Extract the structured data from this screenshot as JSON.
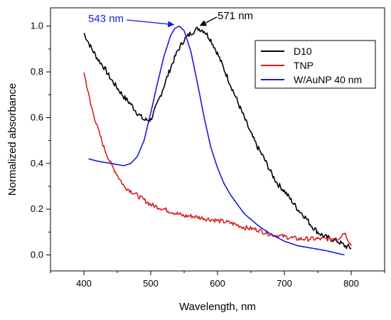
{
  "chart_data": {
    "type": "line",
    "xlabel": "Wavelength, nm",
    "ylabel": "Normalized absorbance",
    "xlim": [
      350,
      850
    ],
    "ylim": [
      -0.07,
      1.08
    ],
    "x_ticks": [
      400,
      500,
      600,
      700,
      800
    ],
    "y_ticks": [
      0.0,
      0.2,
      0.4,
      0.6,
      0.8,
      1.0
    ],
    "x_tick_labels": [
      "400",
      "500",
      "600",
      "700",
      "800"
    ],
    "y_tick_labels": [
      "0.0",
      "0.2",
      "0.4",
      "0.6",
      "0.8",
      "1.0"
    ],
    "grid": false,
    "legend_position": "top-right",
    "series": [
      {
        "name": "D10",
        "color": "#000000",
        "noise": 0.012,
        "x": [
          400,
          410,
          420,
          430,
          440,
          450,
          460,
          470,
          480,
          490,
          500,
          510,
          520,
          530,
          540,
          550,
          560,
          571,
          580,
          590,
          600,
          610,
          620,
          630,
          640,
          650,
          660,
          670,
          680,
          690,
          700,
          710,
          720,
          730,
          740,
          750,
          760,
          770,
          780,
          790,
          800
        ],
        "y": [
          0.97,
          0.91,
          0.86,
          0.82,
          0.77,
          0.73,
          0.69,
          0.66,
          0.62,
          0.59,
          0.59,
          0.66,
          0.74,
          0.82,
          0.89,
          0.94,
          0.97,
          0.99,
          0.98,
          0.94,
          0.88,
          0.81,
          0.74,
          0.67,
          0.6,
          0.53,
          0.47,
          0.42,
          0.36,
          0.31,
          0.28,
          0.24,
          0.2,
          0.17,
          0.13,
          0.1,
          0.08,
          0.07,
          0.06,
          0.04,
          0.03
        ]
      },
      {
        "name": "TNP",
        "color": "#d62020",
        "noise": 0.01,
        "x": [
          400,
          410,
          420,
          430,
          440,
          450,
          460,
          470,
          480,
          490,
          500,
          510,
          520,
          530,
          540,
          550,
          560,
          580,
          600,
          620,
          640,
          660,
          680,
          700,
          720,
          740,
          760,
          780,
          790,
          800
        ],
        "y": [
          0.8,
          0.66,
          0.56,
          0.47,
          0.4,
          0.35,
          0.3,
          0.28,
          0.26,
          0.24,
          0.22,
          0.21,
          0.2,
          0.19,
          0.18,
          0.17,
          0.17,
          0.16,
          0.15,
          0.14,
          0.12,
          0.11,
          0.09,
          0.08,
          0.07,
          0.07,
          0.07,
          0.07,
          0.1,
          0.04
        ]
      },
      {
        "name": "W/AuNP 40 nm",
        "color": "#1a1adf",
        "noise": 0,
        "x": [
          407,
          420,
          440,
          460,
          470,
          480,
          490,
          500,
          510,
          520,
          530,
          536,
          543,
          550,
          560,
          570,
          580,
          590,
          600,
          610,
          620,
          640,
          660,
          680,
          700,
          720,
          740,
          760,
          790
        ],
        "y": [
          0.42,
          0.41,
          0.4,
          0.39,
          0.4,
          0.43,
          0.5,
          0.62,
          0.75,
          0.87,
          0.96,
          0.99,
          1.0,
          0.98,
          0.89,
          0.75,
          0.6,
          0.47,
          0.38,
          0.31,
          0.26,
          0.18,
          0.13,
          0.09,
          0.06,
          0.04,
          0.03,
          0.02,
          0.0
        ]
      }
    ],
    "annotations": [
      {
        "text": "543 nm",
        "color": "#1a1adf",
        "x": 543,
        "y": 1.0
      },
      {
        "text": "571 nm",
        "color": "#000000",
        "x": 571,
        "y": 0.99
      }
    ]
  }
}
